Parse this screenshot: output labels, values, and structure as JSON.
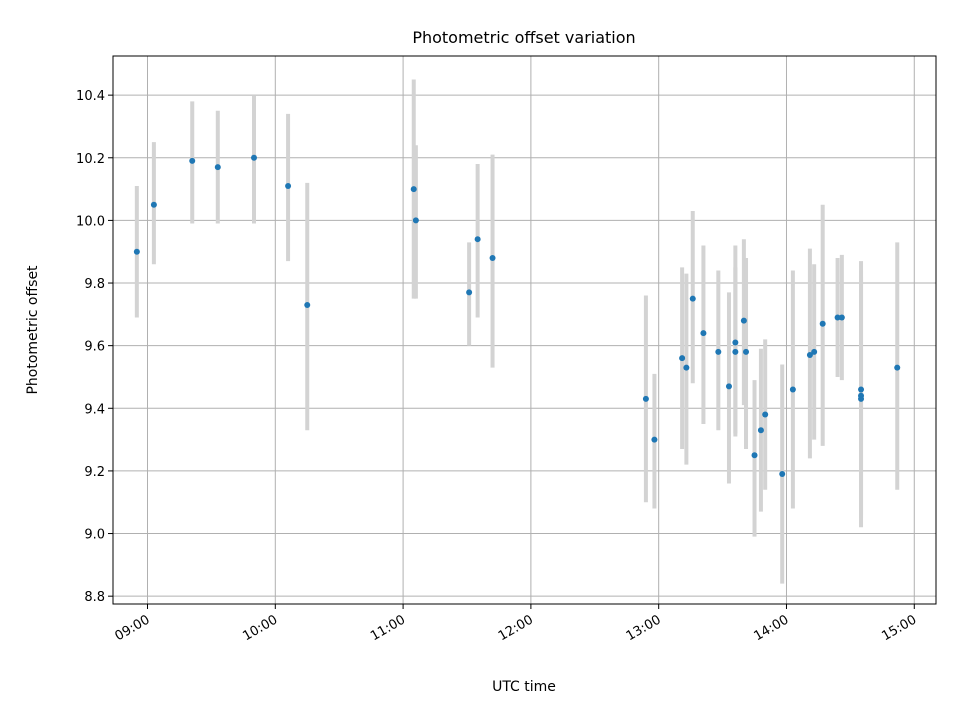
{
  "chart_data": {
    "type": "scatter",
    "title": "Photometric offset variation",
    "xlabel": "UTC time",
    "ylabel": "Photometric offset",
    "x_tick_labels": [
      "09:00",
      "10:00",
      "11:00",
      "12:00",
      "13:00",
      "14:00",
      "15:00"
    ],
    "x_tick_values": [
      9,
      10,
      11,
      12,
      13,
      14,
      15
    ],
    "xlim": [
      8.73,
      15.17
    ],
    "y_tick_labels": [
      "8.8",
      "9.0",
      "9.2",
      "9.4",
      "9.6",
      "9.8",
      "10.0",
      "10.2",
      "10.4"
    ],
    "y_tick_values": [
      8.8,
      9.0,
      9.2,
      9.4,
      9.6,
      9.8,
      10.0,
      10.2,
      10.4
    ],
    "ylim": [
      8.775,
      10.525
    ],
    "grid": true,
    "point_color": "#1f77b4",
    "errorbar_color": "#d3d3d3",
    "points": [
      {
        "time": "08:55",
        "y": 9.9,
        "lo": 9.69,
        "hi": 10.11
      },
      {
        "time": "09:03",
        "y": 10.05,
        "lo": 9.86,
        "hi": 10.25
      },
      {
        "time": "09:21",
        "y": 10.19,
        "lo": 9.99,
        "hi": 10.38
      },
      {
        "time": "09:33",
        "y": 10.17,
        "lo": 9.99,
        "hi": 10.35
      },
      {
        "time": "09:50",
        "y": 10.2,
        "lo": 9.99,
        "hi": 10.4
      },
      {
        "time": "10:06",
        "y": 10.11,
        "lo": 9.87,
        "hi": 10.34
      },
      {
        "time": "10:15",
        "y": 9.73,
        "lo": 9.33,
        "hi": 10.12
      },
      {
        "time": "11:05",
        "y": 10.1,
        "lo": 9.75,
        "hi": 10.45
      },
      {
        "time": "11:06",
        "y": 10.0,
        "lo": 9.75,
        "hi": 10.24
      },
      {
        "time": "11:31",
        "y": 9.77,
        "lo": 9.6,
        "hi": 9.93
      },
      {
        "time": "11:35",
        "y": 9.94,
        "lo": 9.69,
        "hi": 10.18
      },
      {
        "time": "11:42",
        "y": 9.88,
        "lo": 9.53,
        "hi": 10.21
      },
      {
        "time": "12:54",
        "y": 9.43,
        "lo": 9.1,
        "hi": 9.76
      },
      {
        "time": "12:58",
        "y": 9.3,
        "lo": 9.08,
        "hi": 9.51
      },
      {
        "time": "13:11",
        "y": 9.56,
        "lo": 9.27,
        "hi": 9.85
      },
      {
        "time": "13:13",
        "y": 9.53,
        "lo": 9.22,
        "hi": 9.83
      },
      {
        "time": "13:16",
        "y": 9.75,
        "lo": 9.48,
        "hi": 10.03
      },
      {
        "time": "13:21",
        "y": 9.64,
        "lo": 9.35,
        "hi": 9.92
      },
      {
        "time": "13:28",
        "y": 9.58,
        "lo": 9.33,
        "hi": 9.84
      },
      {
        "time": "13:33",
        "y": 9.47,
        "lo": 9.16,
        "hi": 9.77
      },
      {
        "time": "13:36",
        "y": 9.61,
        "lo": 9.31,
        "hi": 9.92
      },
      {
        "time": "13:36",
        "y": 9.58,
        "lo": 9.32,
        "hi": 9.85
      },
      {
        "time": "13:40",
        "y": 9.68,
        "lo": 9.41,
        "hi": 9.94
      },
      {
        "time": "13:41",
        "y": 9.58,
        "lo": 9.27,
        "hi": 9.88
      },
      {
        "time": "13:45",
        "y": 9.25,
        "lo": 8.99,
        "hi": 9.49
      },
      {
        "time": "13:48",
        "y": 9.33,
        "lo": 9.07,
        "hi": 9.59
      },
      {
        "time": "13:50",
        "y": 9.38,
        "lo": 9.14,
        "hi": 9.62
      },
      {
        "time": "13:58",
        "y": 9.19,
        "lo": 8.84,
        "hi": 9.54
      },
      {
        "time": "14:03",
        "y": 9.46,
        "lo": 9.08,
        "hi": 9.84
      },
      {
        "time": "14:11",
        "y": 9.57,
        "lo": 9.24,
        "hi": 9.91
      },
      {
        "time": "14:13",
        "y": 9.58,
        "lo": 9.3,
        "hi": 9.86
      },
      {
        "time": "14:17",
        "y": 9.67,
        "lo": 9.28,
        "hi": 10.05
      },
      {
        "time": "14:24",
        "y": 9.69,
        "lo": 9.5,
        "hi": 9.88
      },
      {
        "time": "14:26",
        "y": 9.69,
        "lo": 9.49,
        "hi": 9.89
      },
      {
        "time": "14:35",
        "y": 9.46,
        "lo": 9.06,
        "hi": 9.87
      },
      {
        "time": "14:35",
        "y": 9.44,
        "lo": 9.05,
        "hi": 9.84
      },
      {
        "time": "14:35",
        "y": 9.43,
        "lo": 9.02,
        "hi": 9.82
      },
      {
        "time": "14:52",
        "y": 9.53,
        "lo": 9.14,
        "hi": 9.93
      }
    ]
  }
}
